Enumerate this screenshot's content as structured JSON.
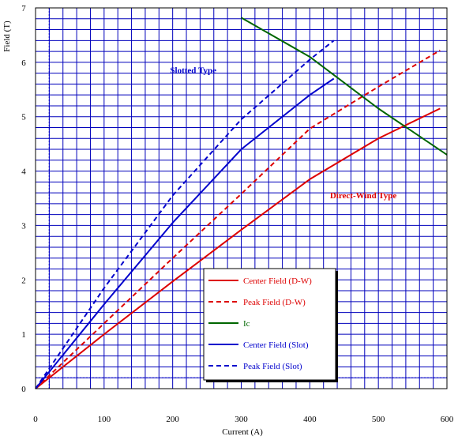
{
  "chart_data": {
    "type": "line",
    "title": "",
    "xlabel": "Current (A)",
    "ylabel": "Field (T)",
    "xlim": [
      0,
      600
    ],
    "ylim": [
      0,
      7
    ],
    "x_ticks": [
      "0",
      "100",
      "200",
      "300",
      "400",
      "500",
      "600"
    ],
    "y_ticks": [
      "0",
      "1",
      "2",
      "3",
      "4",
      "5",
      "6",
      "7"
    ],
    "grid": true,
    "grid_minor_step_x": 20,
    "grid_minor_step_y": 0.2,
    "legend_position": "lower-center",
    "series": [
      {
        "name": "Center Field (D-W)",
        "color": "#dd0000",
        "dash": "solid",
        "x": [
          0,
          100,
          200,
          300,
          400,
          500,
          590
        ],
        "y": [
          0,
          1.0,
          1.97,
          2.92,
          3.85,
          4.6,
          5.15
        ]
      },
      {
        "name": "Peak Field (D-W)",
        "color": "#dd0000",
        "dash": "dashed",
        "x": [
          0,
          100,
          200,
          300,
          400,
          500,
          590
        ],
        "y": [
          0,
          1.2,
          2.4,
          3.58,
          4.78,
          5.55,
          6.22
        ]
      },
      {
        "name": "Ic",
        "color": "#006600",
        "dash": "solid",
        "x": [
          300,
          400,
          500,
          600
        ],
        "y": [
          6.82,
          6.1,
          5.15,
          4.3
        ]
      },
      {
        "name": "Center Field (Slot)",
        "color": "#0000cc",
        "dash": "solid",
        "x": [
          0,
          100,
          200,
          300,
          400,
          435
        ],
        "y": [
          0,
          1.55,
          3.05,
          4.4,
          5.4,
          5.7
        ]
      },
      {
        "name": "Peak Field (Slot)",
        "color": "#0000cc",
        "dash": "dashed",
        "x": [
          0,
          100,
          200,
          300,
          400,
          435
        ],
        "y": [
          0,
          1.85,
          3.55,
          4.95,
          6.05,
          6.4
        ]
      }
    ],
    "reference_lines": [
      {
        "axis": "x",
        "value": 20,
        "color": "#0000cc",
        "dash": "dotted"
      },
      {
        "axis": "y",
        "value": 0.2,
        "color": "#0000cc",
        "dash": "dotted"
      }
    ],
    "annotations": [
      {
        "text": "Slotted  Type",
        "x": 230,
        "y": 5.8,
        "color": "#0000cc"
      },
      {
        "text": "Direct-Wind  Type",
        "x": 478,
        "y": 3.5,
        "color": "#dd0000"
      }
    ]
  }
}
